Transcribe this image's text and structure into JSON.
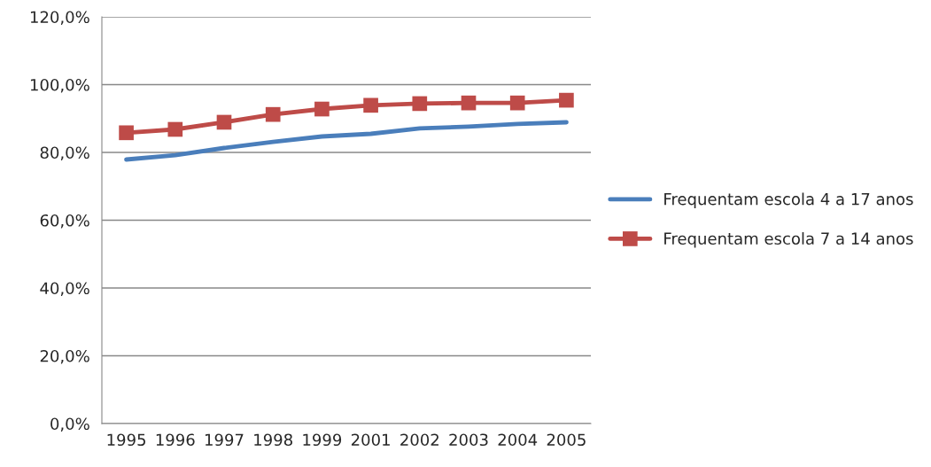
{
  "chart_data": {
    "type": "line",
    "categories": [
      "1995",
      "1996",
      "1997",
      "1998",
      "1999",
      "2001",
      "2002",
      "2003",
      "2004",
      "2005"
    ],
    "series": [
      {
        "name": "Frequentam escola 4 a 17 anos",
        "color": "#4a7ebb",
        "marker": "none",
        "values": [
          77.9,
          79.2,
          81.3,
          83.1,
          84.7,
          85.5,
          87.1,
          87.6,
          88.4,
          88.9
        ]
      },
      {
        "name": "Frequentam escola 7 a 14 anos",
        "color": "#be4b48",
        "marker": "square",
        "values": [
          85.8,
          86.8,
          88.9,
          91.2,
          92.8,
          93.9,
          94.4,
          94.6,
          94.6,
          95.4
        ]
      }
    ],
    "ylim": [
      0,
      120
    ],
    "yticks": [
      {
        "value": 0,
        "label": "0,0%"
      },
      {
        "value": 20,
        "label": "20,0%"
      },
      {
        "value": 40,
        "label": "40,0%"
      },
      {
        "value": 60,
        "label": "60,0%"
      },
      {
        "value": 80,
        "label": "80,0%"
      },
      {
        "value": 100,
        "label": "100,0%"
      },
      {
        "value": 120,
        "label": "120,0%"
      }
    ],
    "grid": "y",
    "legend": "right",
    "line_style": "solid"
  }
}
